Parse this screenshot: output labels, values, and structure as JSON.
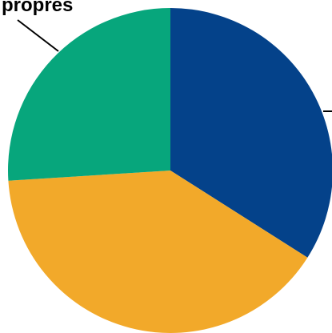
{
  "chart_data": {
    "type": "pie",
    "start_angle_deg": -90,
    "slices": [
      {
        "label": "",
        "value": 34,
        "color": "#04428A"
      },
      {
        "label": "",
        "value": 40,
        "color": "#F2A92A"
      },
      {
        "label": "",
        "value": 26,
        "color": "#07A67C"
      }
    ],
    "annotations": [
      {
        "text": "propres"
      },
      {
        "text": ""
      }
    ]
  }
}
